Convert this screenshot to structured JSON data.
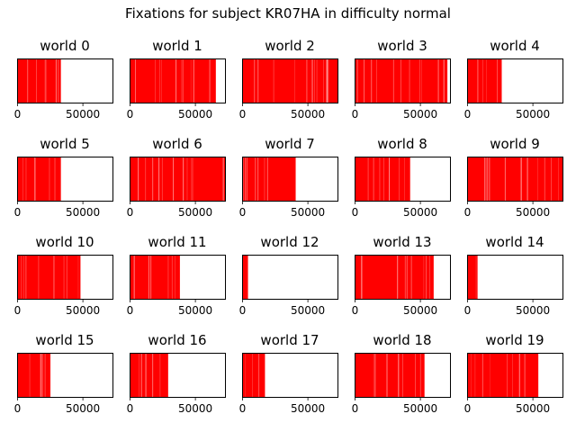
{
  "title": "Fixations for subject KR07HA in difficulty normal",
  "chart_data": {
    "type": "bar",
    "title": "Fixations for subject KR07HA in difficulty normal",
    "xlim": [
      0,
      73000
    ],
    "xticks": [
      0,
      50000
    ],
    "xtick_labels": [
      "0",
      "50000"
    ],
    "yticks": [],
    "bar_color": "#ff0000",
    "grid": false,
    "panels": [
      {
        "title": "world 0",
        "fixation_end": 33500
      },
      {
        "title": "world 1",
        "fixation_end": 66000
      },
      {
        "title": "world 2",
        "fixation_end": 73000
      },
      {
        "title": "world 3",
        "fixation_end": 71000
      },
      {
        "title": "world 4",
        "fixation_end": 26500
      },
      {
        "title": "world 5",
        "fixation_end": 33500
      },
      {
        "title": "world 6",
        "fixation_end": 73000
      },
      {
        "title": "world 7",
        "fixation_end": 41000
      },
      {
        "title": "world 8",
        "fixation_end": 42500
      },
      {
        "title": "world 9",
        "fixation_end": 73000
      },
      {
        "title": "world 10",
        "fixation_end": 48500
      },
      {
        "title": "world 11",
        "fixation_end": 38500
      },
      {
        "title": "world 12",
        "fixation_end": 4500
      },
      {
        "title": "world 13",
        "fixation_end": 60500
      },
      {
        "title": "world 14",
        "fixation_end": 8000
      },
      {
        "title": "world 15",
        "fixation_end": 25500
      },
      {
        "title": "world 16",
        "fixation_end": 29500
      },
      {
        "title": "world 17",
        "fixation_end": 17500
      },
      {
        "title": "world 18",
        "fixation_end": 53500
      },
      {
        "title": "world 19",
        "fixation_end": 54500
      }
    ]
  }
}
